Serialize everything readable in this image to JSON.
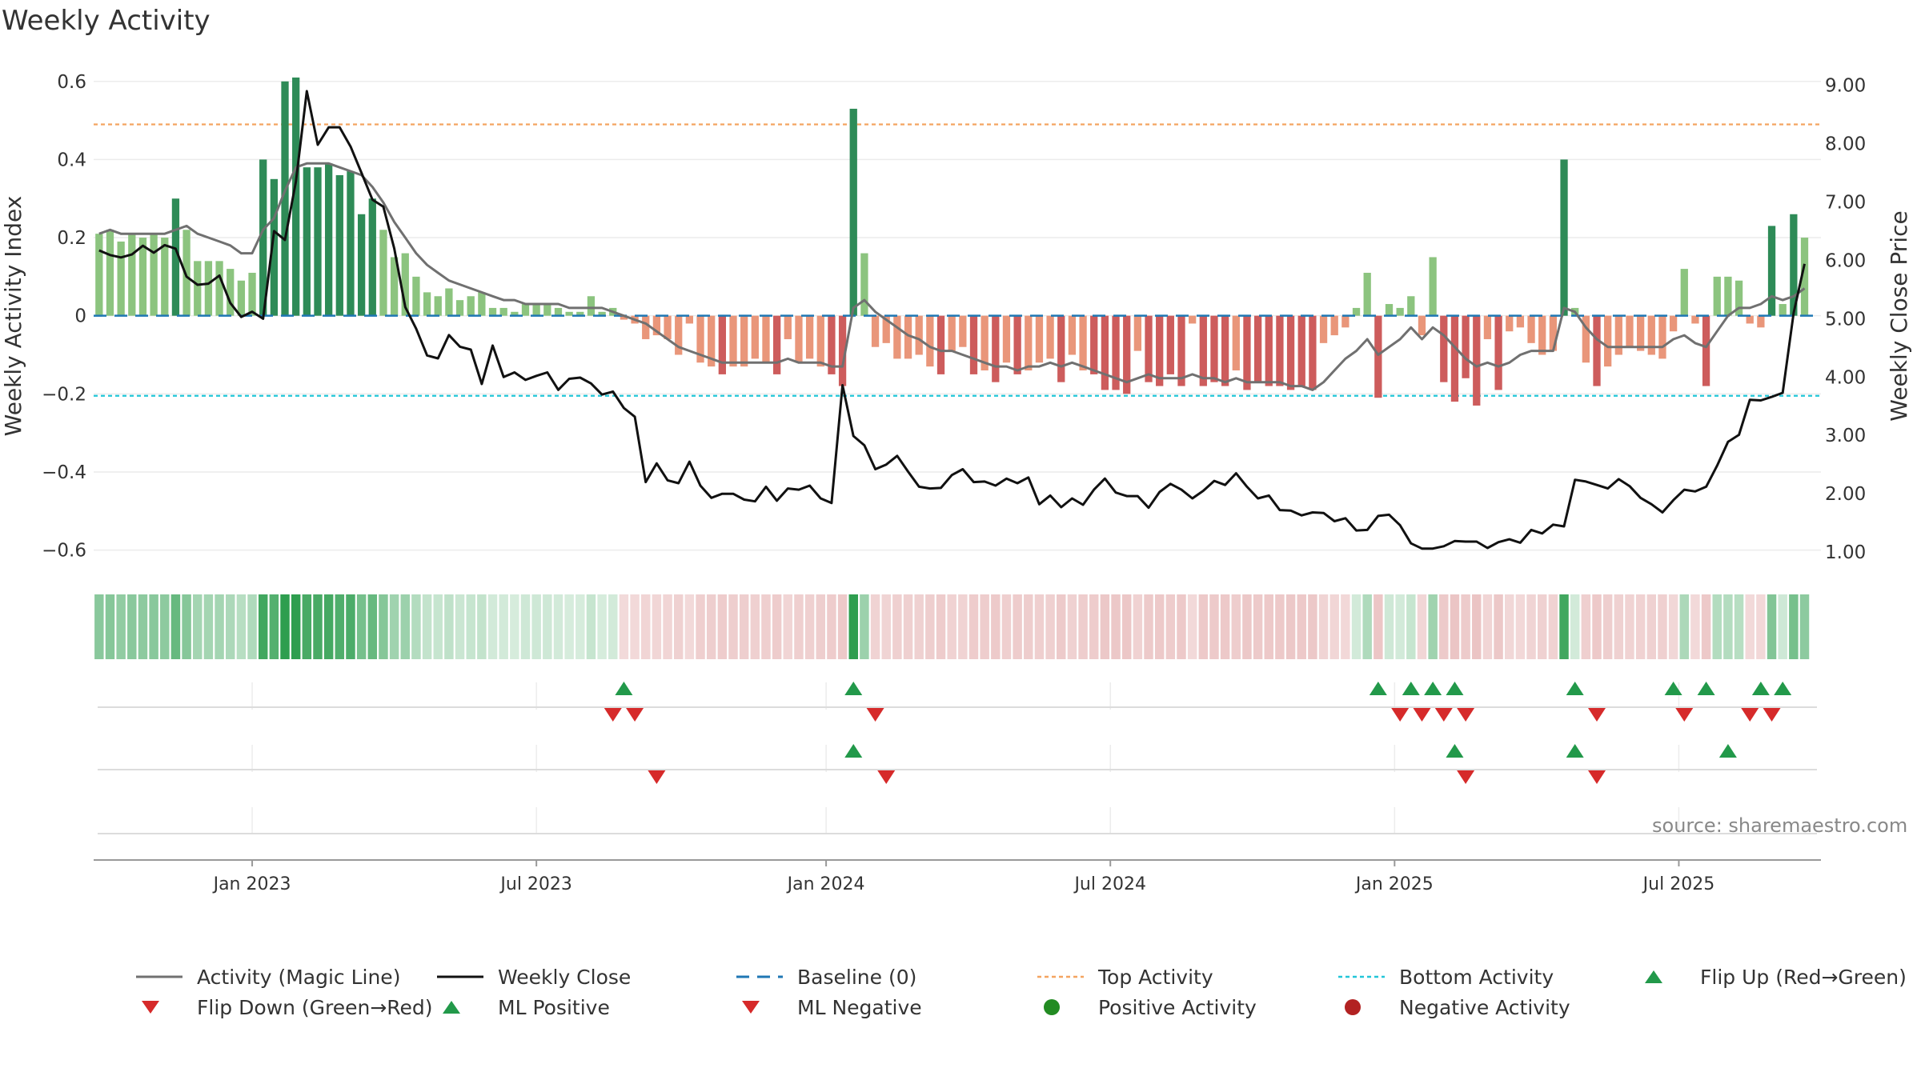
{
  "title": "Weekly Activity",
  "source": "source: sharemaestro.com",
  "colors": {
    "pos_strong": "#2e8b57",
    "pos_weak": "#8cc47f",
    "neg_strong": "#cd5c5c",
    "neg_weak": "#e9967a",
    "magic": "#707070",
    "close": "#111111",
    "baseline": "#1f77b4",
    "top": "#f4a460",
    "bottom": "#22c6d8",
    "flip_up": "#22994a",
    "flip_down": "#d62a2a",
    "pos_dot": "#228b22",
    "neg_dot": "#b22222"
  },
  "chart_data": {
    "type": "bar",
    "title": "Weekly Activity",
    "ylabel": "Weekly Activity Index",
    "y2label": "Weekly Close Price",
    "ylim": [
      -0.65,
      0.62
    ],
    "y2lim": [
      0.7,
      9.2
    ],
    "yticks": [
      "0.6",
      "0.4",
      "0.2",
      "0",
      "−0.2",
      "−0.4",
      "−0.6"
    ],
    "yticks_val": [
      0.6,
      0.4,
      0.2,
      0,
      -0.2,
      -0.4,
      -0.6
    ],
    "y2ticks": [
      "9.00",
      "8.00",
      "7.00",
      "6.00",
      "5.00",
      "4.00",
      "3.00",
      "2.00",
      "1.00"
    ],
    "y2ticks_val": [
      9,
      8,
      7,
      6,
      5,
      4,
      3,
      2,
      1
    ],
    "xticks": [
      "Jan 2023",
      "Jul 2023",
      "Jan 2024",
      "Jul 2024",
      "Jan 2025",
      "Jul 2025"
    ],
    "xticks_week": [
      14,
      40,
      66.5,
      92.5,
      118.5,
      144.5
    ],
    "weeks": 158,
    "top_activity": 0.49,
    "bottom_activity": -0.205,
    "baseline": 0,
    "activity": [
      0.21,
      0.22,
      0.19,
      0.21,
      0.2,
      0.21,
      0.2,
      0.3,
      0.22,
      0.14,
      0.14,
      0.14,
      0.12,
      0.09,
      0.11,
      0.4,
      0.35,
      0.6,
      0.61,
      0.38,
      0.38,
      0.39,
      0.36,
      0.37,
      0.26,
      0.3,
      0.22,
      0.15,
      0.16,
      0.1,
      0.06,
      0.05,
      0.07,
      0.04,
      0.05,
      0.06,
      0.02,
      0.02,
      0.01,
      0.03,
      0.03,
      0.03,
      0.02,
      0.01,
      0.01,
      0.05,
      0.01,
      0.02,
      -0.01,
      -0.02,
      -0.06,
      -0.05,
      -0.06,
      -0.1,
      -0.02,
      -0.12,
      -0.13,
      -0.15,
      -0.13,
      -0.13,
      -0.11,
      -0.12,
      -0.15,
      -0.06,
      -0.12,
      -0.11,
      -0.13,
      -0.15,
      -0.18,
      0.53,
      0.16,
      -0.08,
      -0.07,
      -0.11,
      -0.11,
      -0.1,
      -0.13,
      -0.15,
      -0.09,
      -0.08,
      -0.15,
      -0.14,
      -0.17,
      -0.12,
      -0.15,
      -0.14,
      -0.12,
      -0.11,
      -0.17,
      -0.1,
      -0.14,
      -0.15,
      -0.19,
      -0.19,
      -0.2,
      -0.09,
      -0.17,
      -0.18,
      -0.15,
      -0.18,
      -0.02,
      -0.18,
      -0.17,
      -0.18,
      -0.14,
      -0.19,
      -0.17,
      -0.18,
      -0.18,
      -0.19,
      -0.18,
      -0.19,
      -0.07,
      -0.05,
      -0.03,
      0.02,
      0.11,
      -0.21,
      0.03,
      0.02,
      0.05,
      -0.05,
      0.15,
      -0.17,
      -0.22,
      -0.16,
      -0.23,
      -0.06,
      -0.19,
      -0.04,
      -0.03,
      -0.07,
      -0.1,
      -0.09,
      0.4,
      0.02,
      -0.12,
      -0.18,
      -0.13,
      -0.1,
      -0.08,
      -0.09,
      -0.1,
      -0.11,
      -0.04,
      0.12,
      -0.02,
      -0.18,
      0.1,
      0.1,
      0.09,
      -0.02,
      -0.03,
      0.23,
      0.03,
      0.26,
      0.2
    ],
    "magic_line": [
      0.21,
      0.22,
      0.21,
      0.21,
      0.21,
      0.21,
      0.21,
      0.22,
      0.23,
      0.21,
      0.2,
      0.19,
      0.18,
      0.16,
      0.16,
      0.22,
      0.25,
      0.32,
      0.38,
      0.39,
      0.39,
      0.39,
      0.38,
      0.37,
      0.36,
      0.33,
      0.29,
      0.24,
      0.2,
      0.16,
      0.13,
      0.11,
      0.09,
      0.08,
      0.07,
      0.06,
      0.05,
      0.04,
      0.04,
      0.03,
      0.03,
      0.03,
      0.03,
      0.02,
      0.02,
      0.02,
      0.02,
      0.01,
      0.0,
      -0.01,
      -0.02,
      -0.04,
      -0.06,
      -0.08,
      -0.09,
      -0.1,
      -0.11,
      -0.12,
      -0.12,
      -0.12,
      -0.12,
      -0.12,
      -0.12,
      -0.11,
      -0.12,
      -0.12,
      -0.12,
      -0.13,
      -0.13,
      0.02,
      0.04,
      0.01,
      -0.01,
      -0.03,
      -0.05,
      -0.06,
      -0.08,
      -0.09,
      -0.09,
      -0.1,
      -0.11,
      -0.12,
      -0.13,
      -0.13,
      -0.14,
      -0.13,
      -0.13,
      -0.12,
      -0.13,
      -0.12,
      -0.13,
      -0.14,
      -0.15,
      -0.16,
      -0.17,
      -0.16,
      -0.15,
      -0.16,
      -0.16,
      -0.16,
      -0.15,
      -0.16,
      -0.16,
      -0.17,
      -0.16,
      -0.17,
      -0.17,
      -0.17,
      -0.17,
      -0.18,
      -0.18,
      -0.19,
      -0.17,
      -0.14,
      -0.11,
      -0.09,
      -0.06,
      -0.1,
      -0.08,
      -0.06,
      -0.03,
      -0.06,
      -0.03,
      -0.05,
      -0.08,
      -0.11,
      -0.13,
      -0.12,
      -0.13,
      -0.12,
      -0.1,
      -0.09,
      -0.09,
      -0.09,
      0.02,
      0.01,
      -0.03,
      -0.06,
      -0.08,
      -0.08,
      -0.08,
      -0.08,
      -0.08,
      -0.08,
      -0.06,
      -0.05,
      -0.07,
      -0.08,
      -0.04,
      0.0,
      0.02,
      0.02,
      0.03,
      0.05,
      0.04,
      0.05,
      0.07
    ],
    "weekly_close": [
      6.17,
      6.09,
      6.05,
      6.1,
      6.25,
      6.13,
      6.26,
      6.2,
      5.72,
      5.58,
      5.6,
      5.74,
      5.27,
      5.03,
      5.12,
      5.0,
      6.5,
      6.35,
      7.35,
      8.9,
      7.98,
      8.28,
      8.28,
      7.95,
      7.5,
      7.04,
      6.92,
      6.2,
      5.2,
      4.83,
      4.37,
      4.32,
      4.72,
      4.52,
      4.47,
      3.88,
      4.54,
      4.0,
      4.08,
      3.95,
      4.02,
      4.08,
      3.78,
      3.97,
      3.99,
      3.89,
      3.7,
      3.75,
      3.47,
      3.32,
      2.2,
      2.52,
      2.23,
      2.18,
      2.55,
      2.14,
      1.93,
      2.0,
      2.0,
      1.9,
      1.87,
      2.12,
      1.88,
      2.09,
      2.07,
      2.14,
      1.92,
      1.84,
      3.86,
      2.99,
      2.83,
      2.42,
      2.5,
      2.65,
      2.38,
      2.12,
      2.09,
      2.1,
      2.32,
      2.42,
      2.2,
      2.21,
      2.14,
      2.26,
      2.18,
      2.28,
      1.82,
      1.97,
      1.77,
      1.92,
      1.81,
      2.07,
      2.26,
      2.02,
      1.96,
      1.96,
      1.76,
      2.03,
      2.17,
      2.07,
      1.92,
      2.05,
      2.22,
      2.15,
      2.35,
      2.12,
      1.92,
      1.97,
      1.72,
      1.71,
      1.63,
      1.68,
      1.67,
      1.53,
      1.58,
      1.37,
      1.38,
      1.62,
      1.64,
      1.46,
      1.15,
      1.06,
      1.06,
      1.1,
      1.19,
      1.18,
      1.18,
      1.07,
      1.17,
      1.22,
      1.16,
      1.38,
      1.32,
      1.47,
      1.44,
      2.24,
      2.21,
      2.15,
      2.09,
      2.25,
      2.13,
      1.93,
      1.82,
      1.68,
      1.89,
      2.07,
      2.04,
      2.12,
      2.48,
      2.89,
      3.01,
      3.61,
      3.6,
      3.66,
      3.73,
      5.1,
      5.94
    ],
    "flip_up": [
      48,
      69,
      117,
      120,
      122,
      124,
      135,
      144,
      147,
      152,
      154
    ],
    "flip_down": [
      47,
      49,
      71,
      119,
      121,
      123,
      125,
      137,
      145,
      151,
      153
    ],
    "ml_positive": [
      69,
      124,
      135,
      149
    ],
    "ml_negative": [
      51,
      72,
      125,
      137
    ],
    "legend": [
      "Activity (Magic Line)",
      "Weekly Close",
      "Baseline (0)",
      "Top Activity",
      "Bottom Activity",
      "Flip Up (Red→Green)",
      "Flip Down (Green→Red)",
      "ML Positive",
      "ML Negative",
      "Positive Activity",
      "Negative Activity"
    ]
  }
}
